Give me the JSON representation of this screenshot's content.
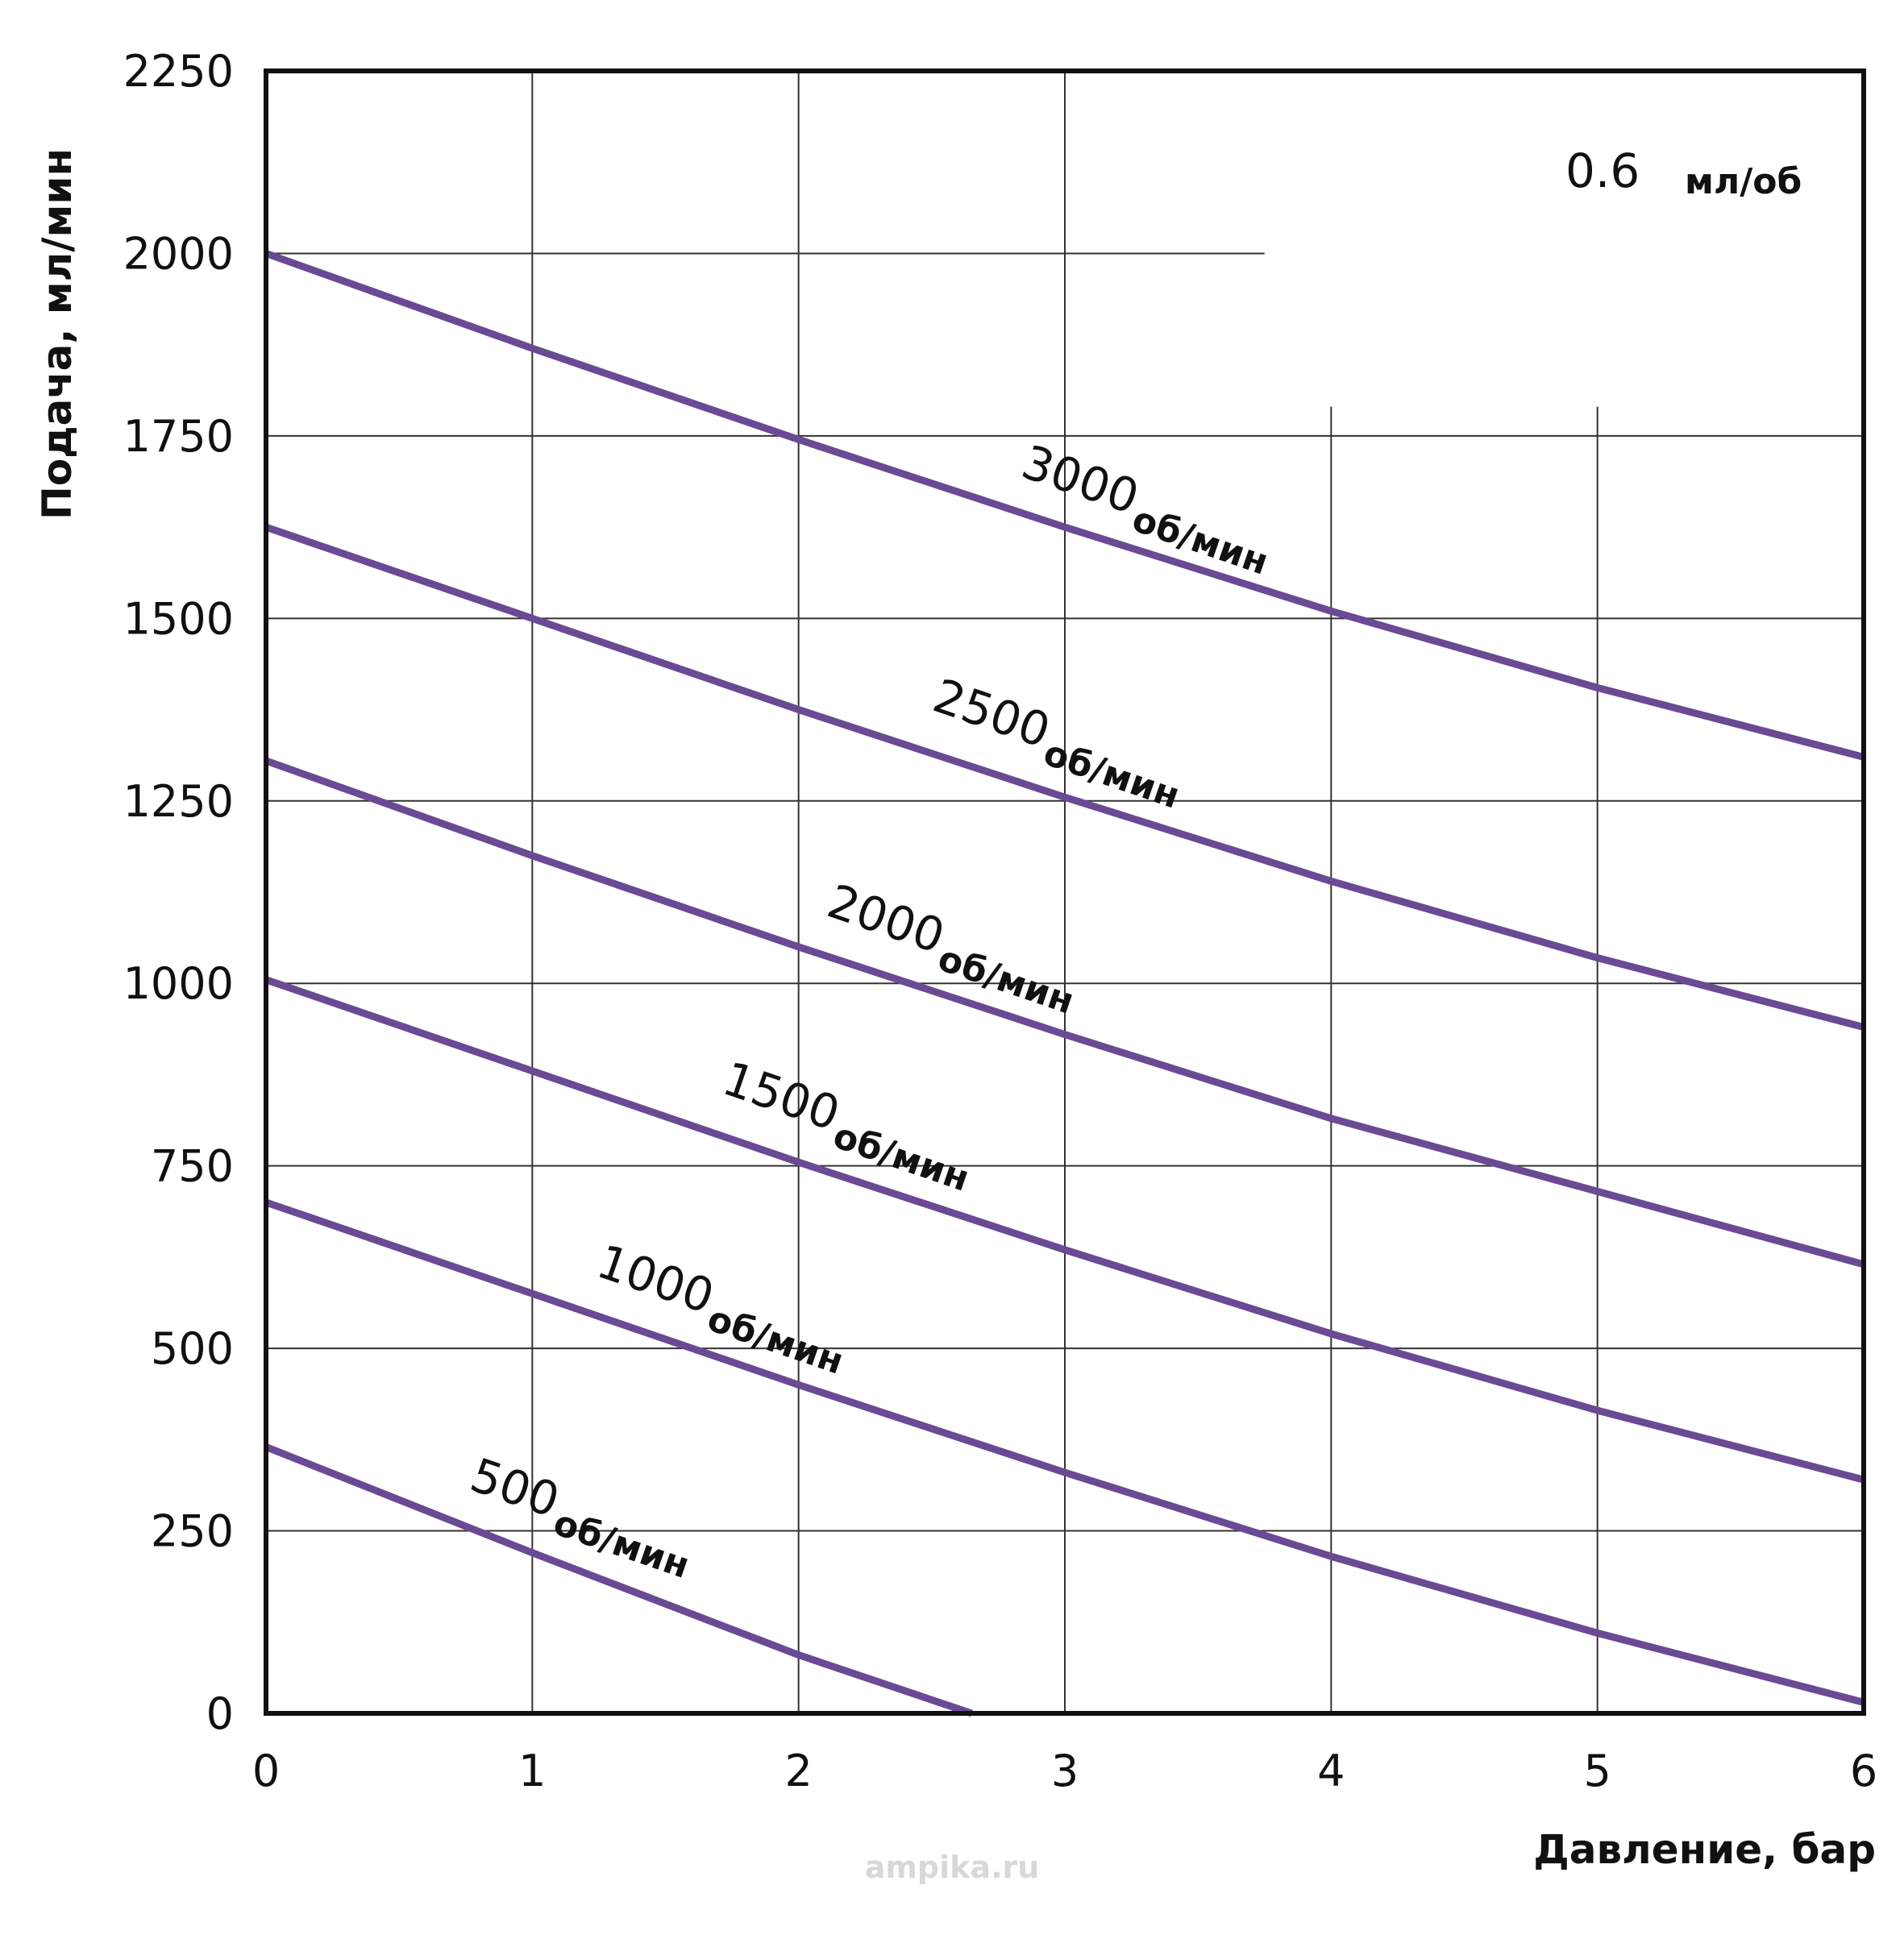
{
  "chart_data": {
    "type": "line",
    "title": "0.6",
    "title_unit": "мл/об",
    "xlabel": "Давление, бар",
    "ylabel": "Подача, мл/мин",
    "xlim": [
      0,
      6
    ],
    "ylim": [
      0,
      2250
    ],
    "xticks": [
      "0",
      "1",
      "2",
      "3",
      "4",
      "5",
      "6"
    ],
    "yticks": [
      "0",
      "250",
      "500",
      "750",
      "1000",
      "1250",
      "1500",
      "1750",
      "2000",
      "2250"
    ],
    "grid": true,
    "line_color": "#6b4a94",
    "series": [
      {
        "name": "3000",
        "unit": "об/мин",
        "x": [
          0,
          1,
          2,
          3,
          4,
          5,
          6
        ],
        "y": [
          2000,
          1870,
          1745,
          1625,
          1510,
          1405,
          1310
        ]
      },
      {
        "name": "2500",
        "unit": "об/мин",
        "x": [
          0,
          1,
          2,
          3,
          4,
          5,
          6
        ],
        "y": [
          1625,
          1500,
          1375,
          1255,
          1140,
          1035,
          940
        ]
      },
      {
        "name": "2000",
        "unit": "об/мин",
        "x": [
          0,
          1,
          2,
          3,
          4,
          5,
          6
        ],
        "y": [
          1305,
          1175,
          1050,
          930,
          815,
          715,
          615
        ]
      },
      {
        "name": "1500",
        "unit": "об/мин",
        "x": [
          0,
          1,
          2,
          3,
          4,
          5,
          6
        ],
        "y": [
          1005,
          880,
          755,
          635,
          520,
          415,
          320
        ]
      },
      {
        "name": "1000",
        "unit": "об/мин",
        "x": [
          0,
          1,
          2,
          3,
          4,
          5,
          6
        ],
        "y": [
          700,
          575,
          450,
          330,
          215,
          110,
          15
        ]
      },
      {
        "name": "500",
        "unit": "об/мин",
        "x": [
          0,
          1,
          2,
          2.65
        ],
        "y": [
          365,
          220,
          80,
          0
        ]
      }
    ],
    "watermark": "ampika.ru"
  }
}
